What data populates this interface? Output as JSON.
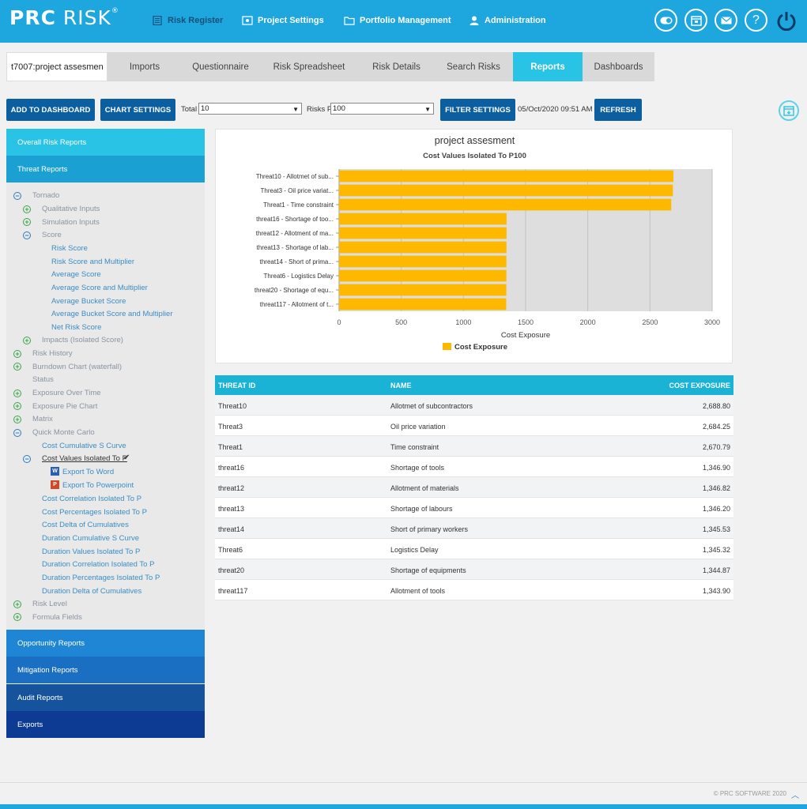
{
  "app": {
    "logo_bold": "PRC",
    "logo_light": "RISK",
    "logo_mark": "®"
  },
  "topnav": [
    {
      "label": "Risk Register",
      "icon": "register-icon"
    },
    {
      "label": "Project Settings",
      "icon": "settings-icon"
    },
    {
      "label": "Portfolio Management",
      "icon": "folder-icon"
    },
    {
      "label": "Administration",
      "icon": "user-icon"
    }
  ],
  "header_icons": [
    "toggle-icon",
    "calendar-icon",
    "mail-icon",
    "help-icon",
    "power-icon"
  ],
  "project": {
    "name": "t7007:project assesmen"
  },
  "crumbs": [
    "Imports",
    "Questionnaire",
    "Risk Spreadsheet",
    "Risk Details",
    "Search Risks",
    "Reports",
    "Dashboards"
  ],
  "active_crumb": "Reports",
  "toolbar": {
    "add_to_dashboard": "ADD TO DASHBOARD",
    "chart_settings": "CHART SETTINGS",
    "total_label": "Total",
    "total_value": "10",
    "risks_label": "Risks P",
    "risks_value": "100",
    "filter_settings": "FILTER SETTINGS",
    "timestamp": "05/Oct/2020 09:51 AM",
    "refresh": "REFRESH"
  },
  "sidebar": {
    "overall": "Overall Risk Reports",
    "threat": "Threat Reports",
    "opportunity": "Opportunity Reports",
    "mitigation": "Mitigation Reports",
    "audit": "Audit Reports",
    "exports": "Exports",
    "tree": {
      "tornado": "Tornado",
      "qualitative": "Qualitative Inputs",
      "simulation": "Simulation Inputs",
      "score": "Score",
      "risk_score": "Risk Score",
      "risk_score_mult": "Risk Score and Multiplier",
      "avg_score": "Average Score",
      "avg_score_mult": "Average Score and Multiplier",
      "avg_bucket": "Average Bucket Score",
      "avg_bucket_mult": "Average Bucket Score and Multiplier",
      "net_risk": "Net Risk Score",
      "impacts": "Impacts (Isolated Score)",
      "risk_history": "Risk History",
      "burndown": "Burndown Chart (waterfall)",
      "status": "Status",
      "exposure_time": "Exposure Over Time",
      "exposure_pie": "Exposure Pie Chart",
      "matrix": "Matrix",
      "qmc": "Quick Monte Carlo",
      "cost_cum": "Cost Cumulative S Curve",
      "cost_values": "Cost Values Isolated To P",
      "export_word": "Export To Word",
      "export_ppt": "Export To Powerpoint",
      "cost_corr": "Cost Correlation Isolated To P",
      "cost_pct": "Cost Percentages Isolated To P",
      "cost_delta": "Cost Delta of Cumulatives",
      "dur_cum": "Duration Cumulative S Curve",
      "dur_values": "Duration Values Isolated To P",
      "dur_corr": "Duration Correlation Isolated To P",
      "dur_pct": "Duration Percentages Isolated To P",
      "dur_delta": "Duration Delta of Cumulatives",
      "risk_level": "Risk Level",
      "formula": "Formula Fields"
    }
  },
  "chart_data": {
    "type": "bar",
    "title": "project assesment",
    "subtitle": "Cost Values Isolated To P100",
    "categories": [
      "Threat10 - Allotmet of sub...",
      "Threat3 - Oil price variat...",
      "Threat1 - Time constraint",
      "threat16 - Shortage of too...",
      "threat12 - Allotment of ma...",
      "threat13 - Shortage of lab...",
      "threat14 - Short of prima...",
      "Threat6 - Logistics Delay",
      "threat20 - Shortage of equ...",
      "threat117 - Allotment of t..."
    ],
    "series": [
      {
        "name": "Cost Exposure",
        "values": [
          2688.8,
          2684.25,
          2670.79,
          1346.9,
          1346.82,
          1346.2,
          1345.53,
          1345.32,
          1344.87,
          1343.9
        ]
      }
    ],
    "xlabel": "Cost Exposure",
    "xlim": [
      0,
      3000
    ],
    "xticks": [
      "0",
      "500",
      "1000",
      "1500",
      "2000",
      "2500",
      "3000"
    ],
    "color": "#ffb800",
    "legend": "bottom",
    "grid": true
  },
  "table": {
    "headers": [
      "THREAT ID",
      "NAME",
      "COST EXPOSURE"
    ],
    "rows": [
      [
        "Threat10",
        "Allotmet of subcontractors",
        "2,688.80"
      ],
      [
        "Threat3",
        "Oil price variation",
        "2,684.25"
      ],
      [
        "Threat1",
        "Time constraint",
        "2,670.79"
      ],
      [
        "threat16",
        "Shortage of tools",
        "1,346.90"
      ],
      [
        "threat12",
        "Allotment of materials",
        "1,346.82"
      ],
      [
        "threat13",
        "Shortage of labours",
        "1,346.20"
      ],
      [
        "threat14",
        "Short of primary workers",
        "1,345.53"
      ],
      [
        "Threat6",
        "Logistics Delay",
        "1,345.32"
      ],
      [
        "threat20",
        "Shortage of equipments",
        "1,344.87"
      ],
      [
        "threat117",
        "Allotment of tools",
        "1,343.90"
      ]
    ]
  },
  "footer": {
    "copyright": "© PRC SOFTWARE 2020"
  }
}
